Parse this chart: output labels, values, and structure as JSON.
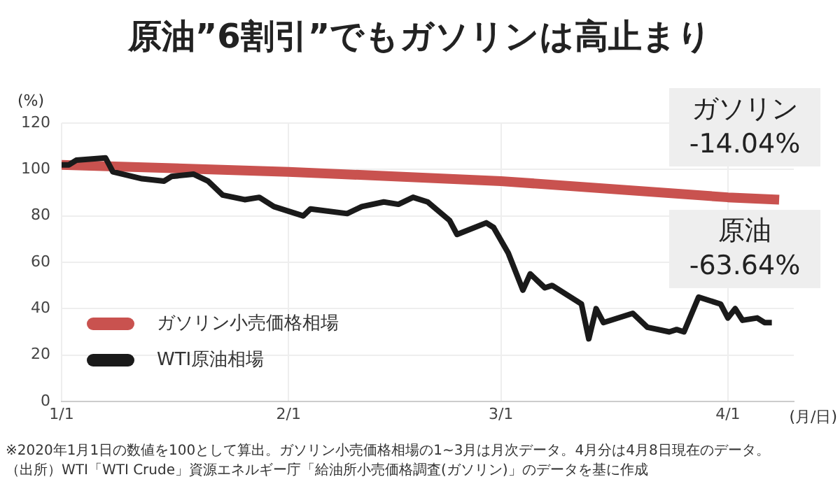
{
  "chart_data": {
    "type": "line",
    "title": "原油”6割引”でもガソリンは高止まり",
    "ylabel": "(%)",
    "xlabel": "(月/日)",
    "xlim": [
      "2020-01-01",
      "2020-04-10"
    ],
    "xticks": [
      {
        "value": "2020-01-01",
        "label": "1/1"
      },
      {
        "value": "2020-02-01",
        "label": "2/1"
      },
      {
        "value": "2020-03-01",
        "label": "3/1"
      },
      {
        "value": "2020-04-01",
        "label": "4/1"
      }
    ],
    "ylim": [
      0,
      120
    ],
    "yticks": [
      0,
      20,
      40,
      60,
      80,
      100,
      120
    ],
    "grid": true,
    "legend": "bottom left",
    "marker": "none",
    "line_style": "solid",
    "series": [
      {
        "name": "ガソリン小売価格相場",
        "color": "#c9524f",
        "x": [
          "2020-01-01",
          "2020-02-01",
          "2020-03-01",
          "2020-04-01",
          "2020-04-08"
        ],
        "values": [
          102,
          99,
          95,
          88,
          87
        ]
      },
      {
        "name": "WTI原油相場",
        "color": "#1a1a1a",
        "x": [
          "2020-01-01",
          "2020-01-02",
          "2020-01-03",
          "2020-01-07",
          "2020-01-08",
          "2020-01-12",
          "2020-01-15",
          "2020-01-16",
          "2020-01-19",
          "2020-01-21",
          "2020-01-23",
          "2020-01-26",
          "2020-01-28",
          "2020-01-30",
          "2020-02-03",
          "2020-02-04",
          "2020-02-09",
          "2020-02-11",
          "2020-02-14",
          "2020-02-16",
          "2020-02-18",
          "2020-02-20",
          "2020-02-23",
          "2020-02-24",
          "2020-02-28",
          "2020-02-29",
          "2020-03-02",
          "2020-03-04",
          "2020-03-05",
          "2020-03-07",
          "2020-03-08",
          "2020-03-12",
          "2020-03-13",
          "2020-03-14",
          "2020-03-15",
          "2020-03-19",
          "2020-03-21",
          "2020-03-24",
          "2020-03-25",
          "2020-03-26",
          "2020-03-28",
          "2020-03-31",
          "2020-04-01",
          "2020-04-02",
          "2020-04-03",
          "2020-04-05",
          "2020-04-06",
          "2020-04-07"
        ],
        "values": [
          102,
          102,
          104,
          105,
          99,
          96,
          95,
          97,
          98,
          95,
          89,
          87,
          88,
          84,
          80,
          83,
          81,
          84,
          86,
          85,
          88,
          86,
          78,
          72,
          77,
          75,
          64,
          48,
          55,
          49,
          50,
          42,
          27,
          40,
          34,
          38,
          32,
          30,
          31,
          30,
          45,
          42,
          36,
          40,
          35,
          36,
          34,
          34
        ]
      }
    ],
    "annotations": [
      "ガソリン\n-14.04%",
      "原油\n-63.64%",
      "※2020年1月1日の数値を100として算出。ガソリン小売価格相場の1~3月は月次データ。4月分は4月8日現在のデータ。",
      "（出所）WTI「WTI Crude」資源エネルギー庁「給油所小売価格調査(ガソリン)」のデータを基に作成"
    ]
  }
}
